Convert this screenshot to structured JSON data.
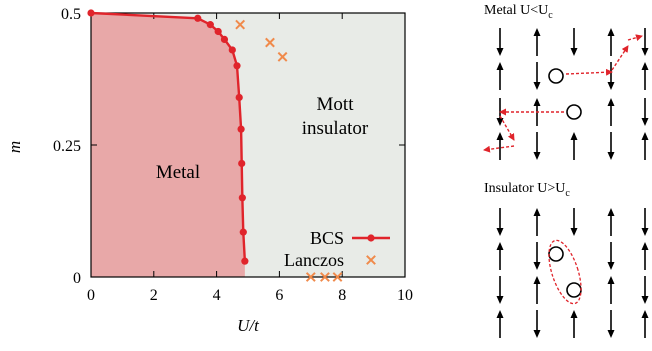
{
  "chart_data": {
    "type": "line",
    "xlabel": "U/t",
    "ylabel": "m",
    "xlim": [
      0,
      10
    ],
    "ylim": [
      0,
      0.5
    ],
    "xticks": [
      "0",
      "2",
      "4",
      "6",
      "8",
      "10"
    ],
    "yticks": [
      "0",
      "0.25",
      "0.5"
    ],
    "legend_position": "bottom-right",
    "grid": false,
    "colors": {
      "metal_region": "#e8a8a8",
      "insulator_region": "#e8ebe7",
      "bcs": "#e0242b",
      "lanczos": "#f08a4b",
      "spin_arrow": "#000000",
      "hop_arrow": "#e0242b"
    },
    "regions": [
      {
        "label": "Metal"
      },
      {
        "label": "Mott\ninsulator"
      }
    ],
    "series": [
      {
        "name": "BCS",
        "marker": "circle",
        "x": [
          0.0,
          3.4,
          3.8,
          4.05,
          4.25,
          4.5,
          4.65,
          4.72,
          4.78,
          4.8,
          4.82,
          4.85,
          4.9
        ],
        "y": [
          0.5,
          0.49,
          0.478,
          0.465,
          0.45,
          0.43,
          0.4,
          0.34,
          0.28,
          0.215,
          0.15,
          0.085,
          0.03
        ]
      },
      {
        "name": "Lanczos",
        "marker": "x",
        "x": [
          4.75,
          5.7,
          6.1,
          7.0,
          7.45,
          7.85
        ],
        "y": [
          0.478,
          0.444,
          0.417,
          0.0,
          0.0,
          0.0
        ]
      }
    ]
  },
  "panels": {
    "metal": {
      "title_main": "Metal U<U",
      "title_sub": "c"
    },
    "insulator": {
      "title_main": "Insulator U>U",
      "title_sub": "c"
    }
  }
}
